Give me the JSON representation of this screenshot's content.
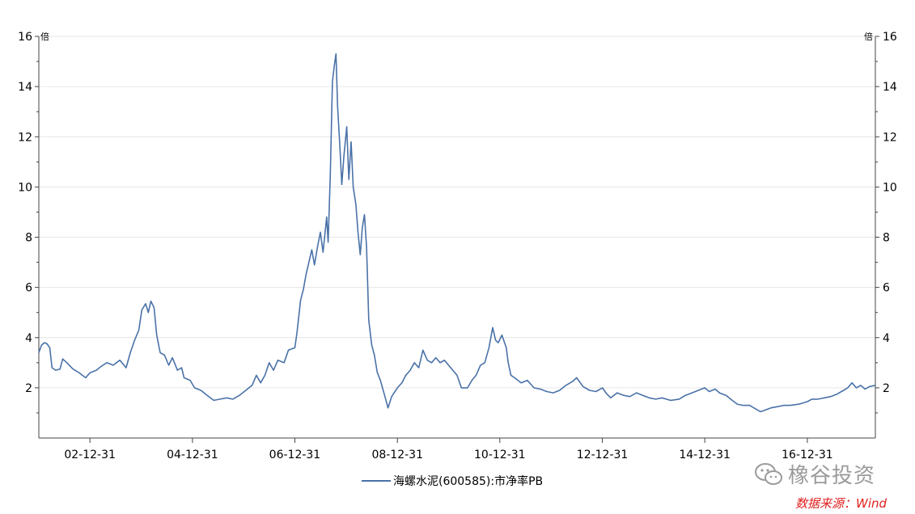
{
  "chart_data": {
    "type": "line",
    "title": "",
    "xlabel": "",
    "ylabel": "",
    "y_unit_left": "倍",
    "y_unit_right": "倍",
    "ylim": [
      0,
      16
    ],
    "yticks": [
      "2",
      "4",
      "6",
      "8",
      "10",
      "12",
      "14",
      "16"
    ],
    "xticks": [
      "02-12-31",
      "04-12-31",
      "06-12-31",
      "08-12-31",
      "10-12-31",
      "12-12-31",
      "14-12-31",
      "16-12-31"
    ],
    "xlim": [
      "2002-01-01",
      "2018-04-30"
    ],
    "grid": true,
    "legend_position": "bottom",
    "series": [
      {
        "name": "海螺水泥(600585):市净率PB",
        "color": "#4a72a8",
        "points": [
          [
            "2002-01-01",
            3.4
          ],
          [
            "2002-01-20",
            3.7
          ],
          [
            "2002-02-10",
            3.8
          ],
          [
            "2002-03-01",
            3.75
          ],
          [
            "2002-03-20",
            3.6
          ],
          [
            "2002-04-05",
            2.8
          ],
          [
            "2002-05-01",
            2.7
          ],
          [
            "2002-06-01",
            2.75
          ],
          [
            "2002-06-20",
            3.15
          ],
          [
            "2002-07-20",
            3.0
          ],
          [
            "2002-09-01",
            2.75
          ],
          [
            "2002-10-15",
            2.6
          ],
          [
            "2002-12-01",
            2.4
          ],
          [
            "2003-01-01",
            2.6
          ],
          [
            "2003-02-15",
            2.7
          ],
          [
            "2003-03-20",
            2.85
          ],
          [
            "2003-05-01",
            3.0
          ],
          [
            "2003-06-15",
            2.9
          ],
          [
            "2003-08-01",
            3.1
          ],
          [
            "2003-09-15",
            2.8
          ],
          [
            "2003-10-15",
            3.4
          ],
          [
            "2003-11-15",
            3.9
          ],
          [
            "2003-12-15",
            4.3
          ],
          [
            "2004-01-05",
            5.1
          ],
          [
            "2004-02-01",
            5.35
          ],
          [
            "2004-02-20",
            5.0
          ],
          [
            "2004-03-10",
            5.45
          ],
          [
            "2004-04-01",
            5.2
          ],
          [
            "2004-04-20",
            4.1
          ],
          [
            "2004-05-15",
            3.4
          ],
          [
            "2004-06-15",
            3.3
          ],
          [
            "2004-07-15",
            2.9
          ],
          [
            "2004-08-10",
            3.2
          ],
          [
            "2004-09-15",
            2.7
          ],
          [
            "2004-10-15",
            2.8
          ],
          [
            "2004-11-01",
            2.4
          ],
          [
            "2004-12-15",
            2.3
          ],
          [
            "2005-01-15",
            2.0
          ],
          [
            "2005-03-01",
            1.9
          ],
          [
            "2005-04-15",
            1.7
          ],
          [
            "2005-06-01",
            1.5
          ],
          [
            "2005-07-15",
            1.55
          ],
          [
            "2005-09-01",
            1.6
          ],
          [
            "2005-10-15",
            1.55
          ],
          [
            "2005-12-01",
            1.7
          ],
          [
            "2006-01-15",
            1.9
          ],
          [
            "2006-03-01",
            2.1
          ],
          [
            "2006-04-01",
            2.5
          ],
          [
            "2006-05-01",
            2.2
          ],
          [
            "2006-06-01",
            2.5
          ],
          [
            "2006-07-01",
            3.0
          ],
          [
            "2006-08-01",
            2.7
          ],
          [
            "2006-09-01",
            3.1
          ],
          [
            "2006-10-15",
            3.0
          ],
          [
            "2006-11-15",
            3.5
          ],
          [
            "2006-12-31",
            3.6
          ],
          [
            "2007-01-15",
            4.2
          ],
          [
            "2007-02-10",
            5.5
          ],
          [
            "2007-03-01",
            5.9
          ],
          [
            "2007-03-20",
            6.5
          ],
          [
            "2007-04-10",
            7.0
          ],
          [
            "2007-05-01",
            7.5
          ],
          [
            "2007-05-20",
            6.9
          ],
          [
            "2007-06-10",
            7.6
          ],
          [
            "2007-07-01",
            8.2
          ],
          [
            "2007-07-20",
            7.4
          ],
          [
            "2007-08-15",
            8.8
          ],
          [
            "2007-08-25",
            7.8
          ],
          [
            "2007-09-10",
            10.5
          ],
          [
            "2007-09-25",
            14.2
          ],
          [
            "2007-10-10",
            14.9
          ],
          [
            "2007-10-20",
            15.3
          ],
          [
            "2007-11-01",
            13.2
          ],
          [
            "2007-11-15",
            11.8
          ],
          [
            "2007-12-01",
            10.1
          ],
          [
            "2007-12-15",
            11.2
          ],
          [
            "2008-01-05",
            12.4
          ],
          [
            "2008-01-20",
            10.3
          ],
          [
            "2008-02-05",
            11.8
          ],
          [
            "2008-02-20",
            10.0
          ],
          [
            "2008-03-10",
            9.3
          ],
          [
            "2008-03-25",
            8.2
          ],
          [
            "2008-04-10",
            7.3
          ],
          [
            "2008-04-25",
            8.4
          ],
          [
            "2008-05-10",
            8.9
          ],
          [
            "2008-05-25",
            7.6
          ],
          [
            "2008-06-10",
            4.7
          ],
          [
            "2008-07-01",
            3.7
          ],
          [
            "2008-07-20",
            3.3
          ],
          [
            "2008-08-10",
            2.6
          ],
          [
            "2008-09-01",
            2.3
          ],
          [
            "2008-10-01",
            1.7
          ],
          [
            "2008-10-25",
            1.2
          ],
          [
            "2008-11-20",
            1.65
          ],
          [
            "2008-12-31",
            2.0
          ],
          [
            "2009-02-01",
            2.2
          ],
          [
            "2009-03-01",
            2.5
          ],
          [
            "2009-04-01",
            2.7
          ],
          [
            "2009-05-01",
            3.0
          ],
          [
            "2009-06-01",
            2.8
          ],
          [
            "2009-07-01",
            3.5
          ],
          [
            "2009-08-01",
            3.1
          ],
          [
            "2009-09-01",
            3.0
          ],
          [
            "2009-10-01",
            3.2
          ],
          [
            "2009-11-01",
            3.0
          ],
          [
            "2009-12-01",
            3.1
          ],
          [
            "2010-01-15",
            2.8
          ],
          [
            "2010-03-01",
            2.5
          ],
          [
            "2010-04-01",
            2.0
          ],
          [
            "2010-05-15",
            2.0
          ],
          [
            "2010-06-15",
            2.3
          ],
          [
            "2010-07-15",
            2.5
          ],
          [
            "2010-08-15",
            2.9
          ],
          [
            "2010-09-15",
            3.0
          ],
          [
            "2010-10-15",
            3.6
          ],
          [
            "2010-11-10",
            4.4
          ],
          [
            "2010-12-01",
            3.9
          ],
          [
            "2010-12-20",
            3.8
          ],
          [
            "2011-01-15",
            4.1
          ],
          [
            "2011-02-15",
            3.6
          ],
          [
            "2011-03-01",
            3.0
          ],
          [
            "2011-03-20",
            2.5
          ],
          [
            "2011-04-15",
            2.4
          ],
          [
            "2011-06-01",
            2.2
          ],
          [
            "2011-07-15",
            2.3
          ],
          [
            "2011-09-01",
            2.0
          ],
          [
            "2011-10-15",
            1.95
          ],
          [
            "2011-12-01",
            1.85
          ],
          [
            "2012-01-15",
            1.8
          ],
          [
            "2012-03-01",
            1.9
          ],
          [
            "2012-04-15",
            2.1
          ],
          [
            "2012-06-01",
            2.25
          ],
          [
            "2012-07-01",
            2.4
          ],
          [
            "2012-08-15",
            2.05
          ],
          [
            "2012-10-01",
            1.9
          ],
          [
            "2012-11-15",
            1.85
          ],
          [
            "2012-12-31",
            2.0
          ],
          [
            "2013-02-01",
            1.75
          ],
          [
            "2013-03-01",
            1.6
          ],
          [
            "2013-04-15",
            1.8
          ],
          [
            "2013-06-01",
            1.7
          ],
          [
            "2013-07-15",
            1.65
          ],
          [
            "2013-09-01",
            1.8
          ],
          [
            "2013-10-15",
            1.7
          ],
          [
            "2013-12-01",
            1.6
          ],
          [
            "2014-01-15",
            1.55
          ],
          [
            "2014-03-01",
            1.6
          ],
          [
            "2014-05-01",
            1.5
          ],
          [
            "2014-07-01",
            1.55
          ],
          [
            "2014-08-15",
            1.7
          ],
          [
            "2014-10-01",
            1.8
          ],
          [
            "2014-11-15",
            1.9
          ],
          [
            "2014-12-31",
            2.0
          ],
          [
            "2015-02-01",
            1.85
          ],
          [
            "2015-03-15",
            1.95
          ],
          [
            "2015-04-15",
            1.8
          ],
          [
            "2015-06-01",
            1.7
          ],
          [
            "2015-07-15",
            1.5
          ],
          [
            "2015-08-20",
            1.35
          ],
          [
            "2015-10-01",
            1.3
          ],
          [
            "2015-11-15",
            1.3
          ],
          [
            "2016-01-01",
            1.15
          ],
          [
            "2016-02-01",
            1.05
          ],
          [
            "2016-03-01",
            1.1
          ],
          [
            "2016-04-15",
            1.2
          ],
          [
            "2016-06-01",
            1.25
          ],
          [
            "2016-07-15",
            1.3
          ],
          [
            "2016-09-01",
            1.3
          ],
          [
            "2016-11-01",
            1.35
          ],
          [
            "2016-12-31",
            1.45
          ],
          [
            "2017-02-01",
            1.55
          ],
          [
            "2017-03-15",
            1.55
          ],
          [
            "2017-05-01",
            1.6
          ],
          [
            "2017-06-15",
            1.65
          ],
          [
            "2017-08-01",
            1.75
          ],
          [
            "2017-09-15",
            1.9
          ],
          [
            "2017-10-15",
            2.0
          ],
          [
            "2017-11-15",
            2.2
          ],
          [
            "2017-12-15",
            2.0
          ],
          [
            "2018-01-15",
            2.1
          ],
          [
            "2018-02-15",
            1.95
          ],
          [
            "2018-03-20",
            2.05
          ],
          [
            "2018-04-30",
            2.1
          ]
        ]
      }
    ]
  },
  "watermark": {
    "text": "橡谷投资",
    "icon": "wechat-icon"
  },
  "source": {
    "text": "数据来源：Wind"
  }
}
